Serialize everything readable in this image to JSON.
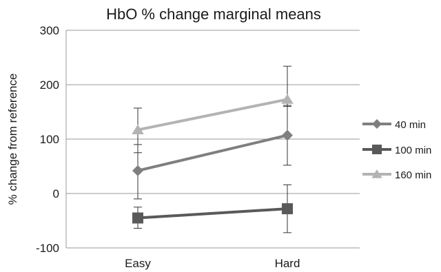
{
  "chart_data": {
    "type": "line",
    "title": "HbO % change marginal means",
    "xlabel": "",
    "ylabel": "% change from reference",
    "categories": [
      "Easy",
      "Hard"
    ],
    "ylim": [
      -100,
      300
    ],
    "yticks": [
      -100,
      0,
      100,
      200,
      300
    ],
    "grid": "horizontal",
    "legend_position": "right",
    "series": [
      {
        "name": "40 min",
        "marker": "diamond",
        "color": "#7f7f7f",
        "values": [
          42,
          107
        ],
        "error": [
          [
            -10,
            90
          ],
          [
            52,
            162
          ]
        ]
      },
      {
        "name": "100 min",
        "marker": "square",
        "color": "#595959",
        "values": [
          -45,
          -28
        ],
        "error": [
          [
            -64,
            -25
          ],
          [
            -72,
            16
          ]
        ]
      },
      {
        "name": "160 min",
        "marker": "triangle",
        "color": "#b3b3b3",
        "values": [
          117,
          173
        ],
        "error": [
          [
            75,
            157
          ],
          [
            160,
            234
          ]
        ]
      }
    ]
  }
}
